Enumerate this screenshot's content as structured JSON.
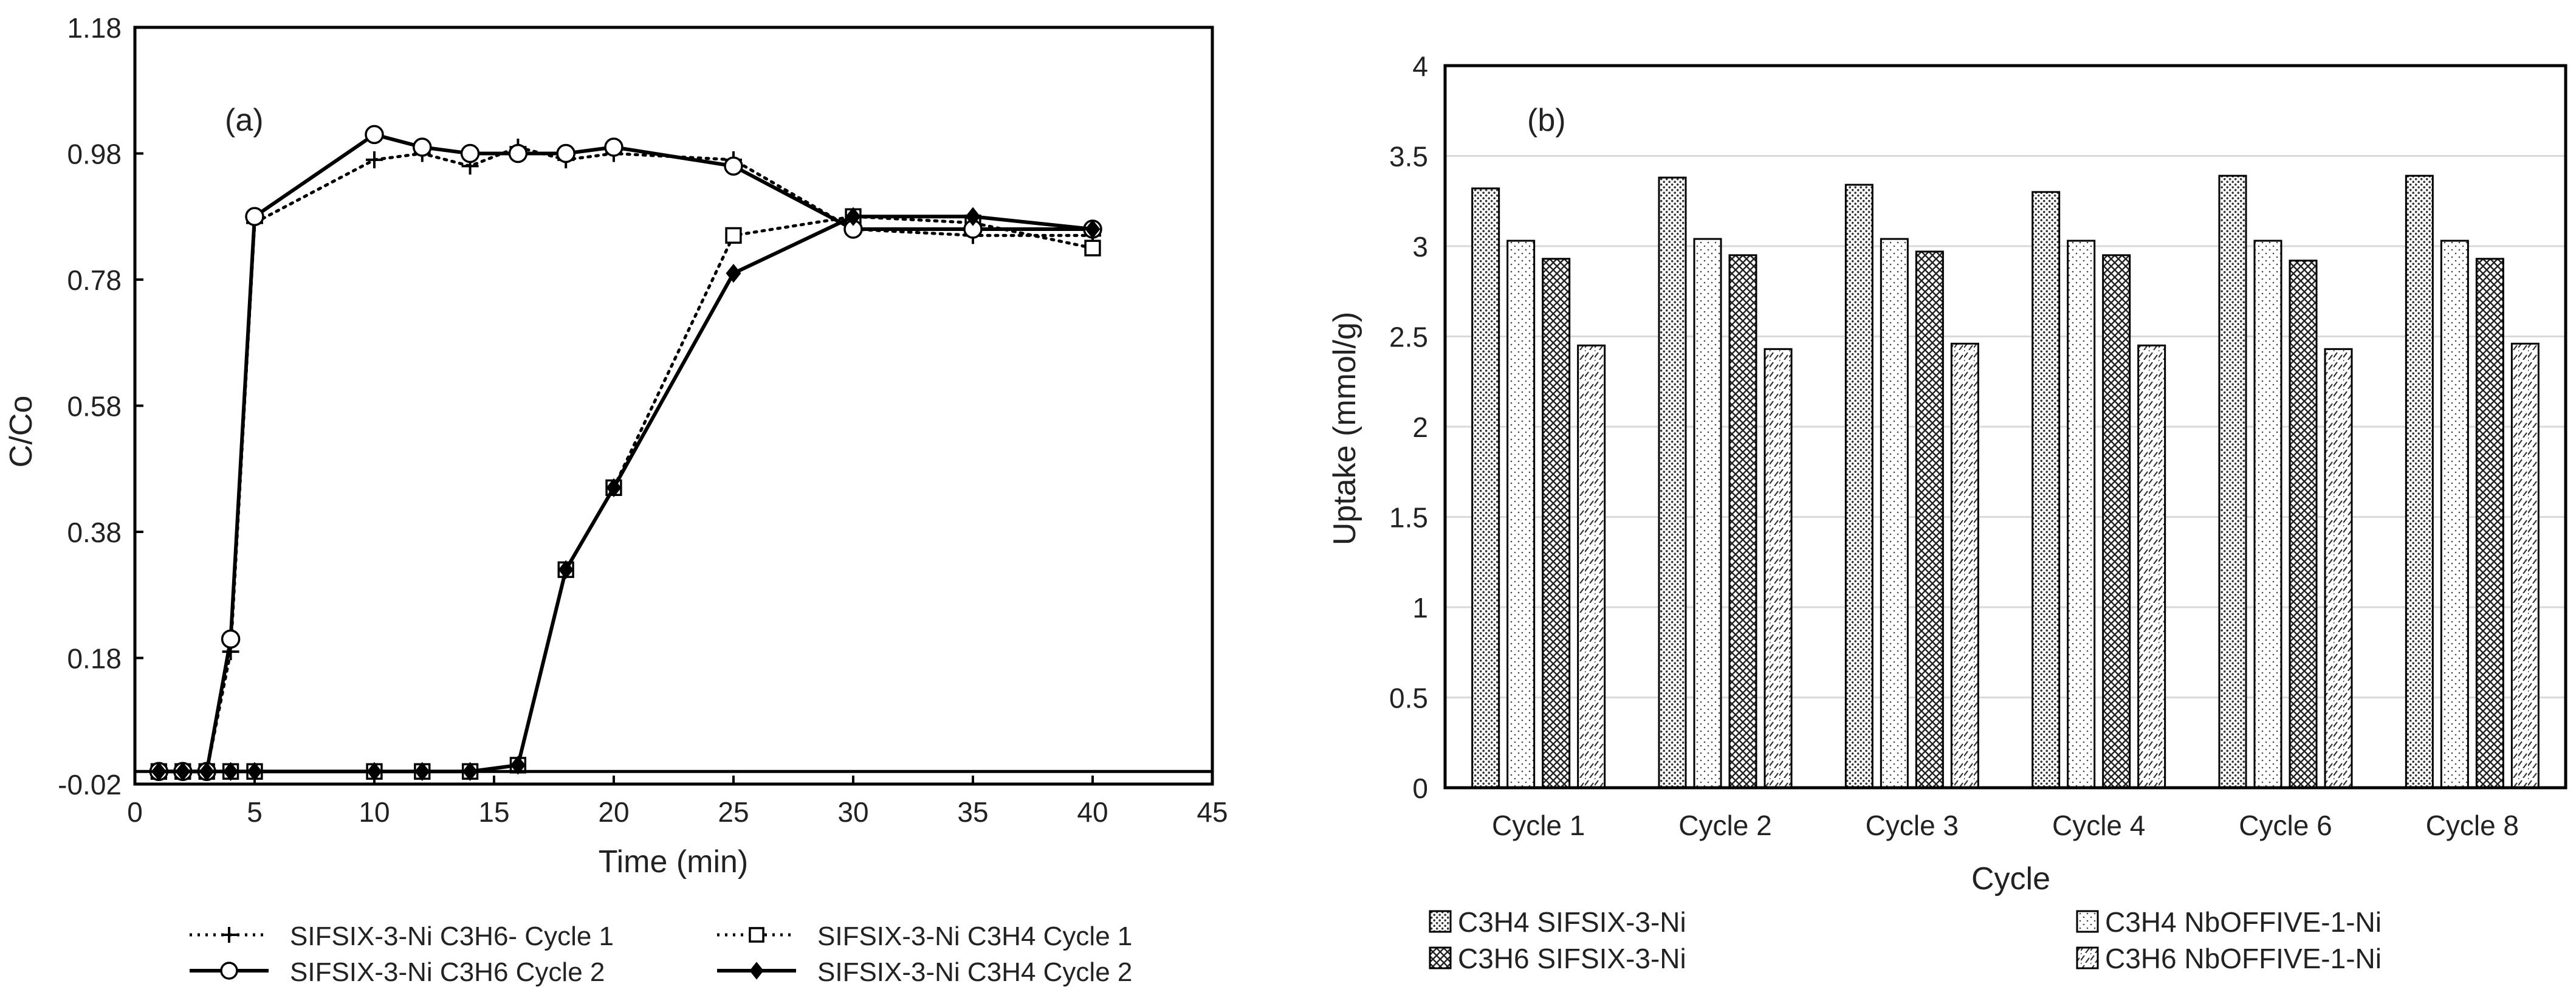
{
  "chart_data": [
    {
      "type": "line",
      "panel_label": "(a)",
      "xlabel": "Time (min)",
      "ylabel": "C/Co",
      "xlim": [
        0,
        45
      ],
      "ylim": [
        -0.02,
        1.18
      ],
      "x_ticks": [
        0,
        5,
        10,
        15,
        20,
        25,
        30,
        35,
        40,
        45
      ],
      "y_ticks": [
        -0.02,
        0.18,
        0.38,
        0.58,
        0.78,
        0.98,
        1.18
      ],
      "x_tick_labels": [
        "0",
        "5",
        "10",
        "15",
        "20",
        "25",
        "30",
        "35",
        "40",
        "45"
      ],
      "y_tick_labels": [
        "-0.02",
        "0.18",
        "0.38",
        "0.58",
        "0.78",
        "0.98",
        "1.18"
      ],
      "series": [
        {
          "name": "SIFSIX-3-Ni C3H6- Cycle 1",
          "style": "dotted",
          "marker": "plus",
          "x": [
            1,
            2,
            3,
            4,
            5,
            10,
            12,
            14,
            16,
            18,
            20,
            25,
            30,
            35,
            40
          ],
          "y": [
            0.0,
            0.0,
            0.0,
            0.19,
            0.87,
            0.97,
            0.98,
            0.96,
            0.99,
            0.97,
            0.98,
            0.97,
            0.86,
            0.85,
            0.85
          ]
        },
        {
          "name": "SIFSIX-3-Ni C3H4 Cycle 1",
          "style": "dotted",
          "marker": "square",
          "x": [
            1,
            2,
            3,
            4,
            5,
            10,
            12,
            14,
            16,
            18,
            20,
            25,
            30,
            35,
            40
          ],
          "y": [
            0.0,
            0.0,
            0.0,
            0.0,
            0.0,
            0.0,
            0.0,
            0.0,
            0.01,
            0.32,
            0.45,
            0.85,
            0.88,
            0.87,
            0.83
          ]
        },
        {
          "name": "SIFSIX-3-Ni C3H6 Cycle 2",
          "style": "solid",
          "marker": "circle",
          "x": [
            1,
            2,
            3,
            4,
            5,
            10,
            12,
            14,
            16,
            18,
            20,
            25,
            30,
            35,
            40
          ],
          "y": [
            0.0,
            0.0,
            0.0,
            0.21,
            0.88,
            1.01,
            0.99,
            0.98,
            0.98,
            0.98,
            0.99,
            0.96,
            0.86,
            0.86,
            0.86
          ]
        },
        {
          "name": "SIFSIX-3-Ni C3H4 Cycle 2",
          "style": "solid",
          "marker": "diamond",
          "x": [
            1,
            2,
            3,
            4,
            5,
            10,
            12,
            14,
            16,
            18,
            20,
            25,
            30,
            35,
            40
          ],
          "y": [
            0.0,
            0.0,
            0.0,
            0.0,
            0.0,
            0.0,
            0.0,
            0.0,
            0.01,
            0.32,
            0.45,
            0.79,
            0.88,
            0.88,
            0.86
          ]
        }
      ]
    },
    {
      "type": "bar",
      "panel_label": "(b)",
      "xlabel": "Cycle",
      "ylabel": "Uptake (mmol/g)",
      "ylim": [
        0,
        4
      ],
      "y_ticks": [
        0,
        0.5,
        1,
        1.5,
        2,
        2.5,
        3,
        3.5,
        4
      ],
      "y_tick_labels": [
        "0",
        "0.5",
        "1",
        "1.5",
        "2",
        "2.5",
        "3",
        "3.5",
        "4"
      ],
      "categories": [
        "Cycle 1",
        "Cycle 2",
        "Cycle 3",
        "Cycle 4",
        "Cycle 6",
        "Cycle 8"
      ],
      "series": [
        {
          "name": "C3H4 SIFSIX-3-Ni",
          "pattern": "dense-dots",
          "values": [
            3.32,
            3.38,
            3.34,
            3.3,
            3.39,
            3.39
          ]
        },
        {
          "name": "C3H4 NbOFFIVE-1-Ni",
          "pattern": "sparse-dots",
          "values": [
            3.03,
            3.04,
            3.04,
            3.03,
            3.03,
            3.03
          ]
        },
        {
          "name": "C3H6 SIFSIX-3-Ni",
          "pattern": "crosshatch",
          "values": [
            2.93,
            2.95,
            2.97,
            2.95,
            2.92,
            2.93
          ]
        },
        {
          "name": "C3H6 NbOFFIVE-1-Ni",
          "pattern": "diagonal",
          "values": [
            2.45,
            2.43,
            2.46,
            2.45,
            2.43,
            2.46
          ]
        }
      ]
    }
  ]
}
